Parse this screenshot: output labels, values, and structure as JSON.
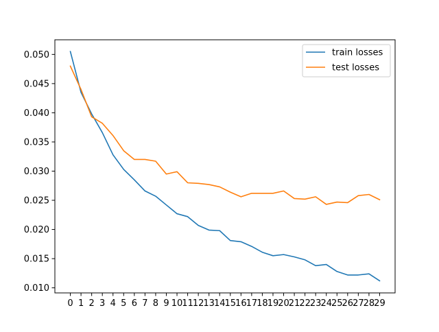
{
  "chart_data": {
    "type": "line",
    "title": "",
    "xlabel": "",
    "ylabel": "",
    "x": [
      0,
      1,
      2,
      3,
      4,
      5,
      6,
      7,
      8,
      9,
      10,
      11,
      12,
      13,
      14,
      15,
      16,
      17,
      18,
      19,
      20,
      21,
      22,
      23,
      24,
      25,
      26,
      27,
      28,
      29
    ],
    "xlim": [
      -1.45,
      30.45
    ],
    "ylim": [
      0.00913,
      0.05251
    ],
    "x_ticks": [
      "0",
      "1",
      "2",
      "3",
      "4",
      "5",
      "6",
      "7",
      "8",
      "9",
      "10",
      "11",
      "12",
      "13",
      "14",
      "15",
      "16",
      "17",
      "18",
      "19",
      "20",
      "21",
      "22",
      "23",
      "24",
      "25",
      "26",
      "27",
      "28",
      "29"
    ],
    "y_ticks": [
      0.01,
      0.015,
      0.02,
      0.025,
      0.03,
      0.035,
      0.04,
      0.045,
      0.05
    ],
    "y_tick_labels": [
      "0.010",
      "0.015",
      "0.020",
      "0.025",
      "0.030",
      "0.035",
      "0.040",
      "0.045",
      "0.050"
    ],
    "grid": false,
    "legend_position": "top-right",
    "series": [
      {
        "name": "train losses",
        "color": "#1f77b4",
        "values": [
          0.0505,
          0.0435,
          0.0398,
          0.0366,
          0.0328,
          0.0303,
          0.0285,
          0.0266,
          0.0257,
          0.0242,
          0.0227,
          0.0222,
          0.0207,
          0.0199,
          0.0198,
          0.0181,
          0.0179,
          0.0171,
          0.0161,
          0.0155,
          0.0157,
          0.0153,
          0.0148,
          0.0138,
          0.014,
          0.0128,
          0.0122,
          0.0122,
          0.0124,
          0.0112
        ]
      },
      {
        "name": "test losses",
        "color": "#ff7f0e",
        "values": [
          0.048,
          0.044,
          0.0393,
          0.0382,
          0.0361,
          0.0335,
          0.032,
          0.032,
          0.0317,
          0.0295,
          0.0299,
          0.028,
          0.0279,
          0.0277,
          0.0273,
          0.0264,
          0.0256,
          0.0262,
          0.0262,
          0.0262,
          0.0266,
          0.0253,
          0.0252,
          0.0256,
          0.0243,
          0.0247,
          0.0246,
          0.0258,
          0.026,
          0.0251
        ]
      }
    ]
  }
}
